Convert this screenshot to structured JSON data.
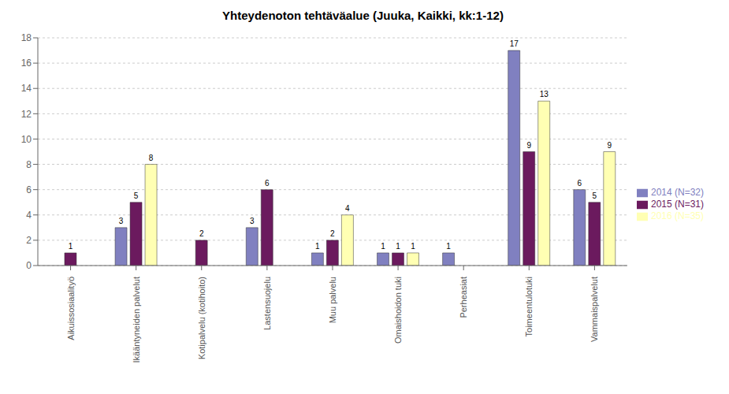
{
  "chart_data": {
    "type": "bar",
    "title": "Yhteydenoton tehtäväalue (Juuka, Kaikki, kk:1-12)",
    "categories": [
      "Aikuissosiaalityö",
      "Ikääntyneiden palvelut",
      "Kotipalvelu (kotihoito)",
      "Lastensuojelu",
      "Muu palvelu",
      "Omaishoidon tuki",
      "Perheasiat",
      "Toimeentulotuki",
      "Vammaispalvelut"
    ],
    "series": [
      {
        "name": "2014 (N=32)",
        "color": "#8080c0",
        "values": [
          0,
          3,
          0,
          3,
          1,
          1,
          1,
          17,
          6
        ]
      },
      {
        "name": "2015 (N=31)",
        "color": "#6b1a5e",
        "values": [
          1,
          5,
          2,
          6,
          2,
          1,
          0,
          9,
          5
        ]
      },
      {
        "name": "2016 (N=35)",
        "color": "#ffffb3",
        "values": [
          0,
          8,
          0,
          0,
          4,
          1,
          0,
          13,
          9
        ]
      }
    ],
    "ylim": [
      0,
      18
    ],
    "yticks": [
      0,
      2,
      4,
      6,
      8,
      10,
      12,
      14,
      16,
      18
    ],
    "grid": true,
    "legend": "right",
    "data_labels": true
  }
}
